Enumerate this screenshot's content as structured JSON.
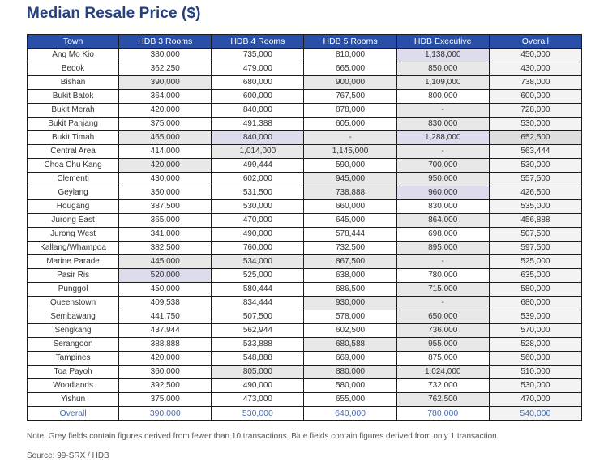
{
  "title": "Median Resale Price ($)",
  "table": {
    "headers": [
      "Town",
      "HDB 3 Rooms",
      "HDB 4 Rooms",
      "HDB 5 Rooms",
      "HDB Executive",
      "Overall"
    ],
    "rows": [
      {
        "town": "Ang Mo Kio",
        "values": [
          "380,000",
          "735,000",
          "810,000",
          "1,138,000",
          "450,000"
        ],
        "shade": [
          "",
          "",
          "",
          "b",
          ""
        ]
      },
      {
        "town": "Bedok",
        "values": [
          "362,250",
          "479,000",
          "665,000",
          "850,000",
          "430,000"
        ],
        "shade": [
          "",
          "",
          "",
          "g",
          ""
        ]
      },
      {
        "town": "Bishan",
        "values": [
          "390,000",
          "680,000",
          "900,000",
          "1,109,000",
          "738,000"
        ],
        "shade": [
          "g",
          "",
          "g",
          "g",
          ""
        ]
      },
      {
        "town": "Bukit Batok",
        "values": [
          "364,000",
          "600,000",
          "767,500",
          "800,000",
          "600,000"
        ],
        "shade": [
          "",
          "",
          "",
          "",
          ""
        ]
      },
      {
        "town": "Bukit Merah",
        "values": [
          "420,000",
          "840,000",
          "878,000",
          "-",
          "728,000"
        ],
        "shade": [
          "",
          "",
          "",
          "g",
          ""
        ]
      },
      {
        "town": "Bukit Panjang",
        "values": [
          "375,000",
          "491,388",
          "605,000",
          "830,000",
          "530,000"
        ],
        "shade": [
          "",
          "",
          "",
          "g",
          ""
        ]
      },
      {
        "town": "Bukit Timah",
        "values": [
          "465,000",
          "840,000",
          "-",
          "1,288,000",
          "652,500"
        ],
        "shade": [
          "g",
          "b",
          "g",
          "b",
          "g2"
        ]
      },
      {
        "town": "Central Area",
        "values": [
          "414,000",
          "1,014,000",
          "1,145,000",
          "-",
          "563,444"
        ],
        "shade": [
          "",
          "g",
          "g",
          "g",
          ""
        ]
      },
      {
        "town": "Choa Chu Kang",
        "values": [
          "420,000",
          "499,444",
          "590,000",
          "700,000",
          "530,000"
        ],
        "shade": [
          "g",
          "",
          "",
          "g",
          ""
        ]
      },
      {
        "town": "Clementi",
        "values": [
          "430,000",
          "602,000",
          "945,000",
          "950,000",
          "557,500"
        ],
        "shade": [
          "",
          "",
          "g",
          "g",
          ""
        ]
      },
      {
        "town": "Geylang",
        "values": [
          "350,000",
          "531,500",
          "738,888",
          "960,000",
          "426,500"
        ],
        "shade": [
          "",
          "",
          "g",
          "b",
          ""
        ]
      },
      {
        "town": "Hougang",
        "values": [
          "387,500",
          "530,000",
          "660,000",
          "830,000",
          "535,000"
        ],
        "shade": [
          "",
          "",
          "",
          "",
          ""
        ]
      },
      {
        "town": "Jurong East",
        "values": [
          "365,000",
          "470,000",
          "645,000",
          "864,000",
          "456,888"
        ],
        "shade": [
          "",
          "",
          "",
          "g",
          ""
        ]
      },
      {
        "town": "Jurong West",
        "values": [
          "341,000",
          "490,000",
          "578,444",
          "698,000",
          "507,500"
        ],
        "shade": [
          "",
          "",
          "",
          "",
          ""
        ]
      },
      {
        "town": "Kallang/Whampoa",
        "values": [
          "382,500",
          "760,000",
          "732,500",
          "895,000",
          "597,500"
        ],
        "shade": [
          "",
          "",
          "",
          "g",
          ""
        ]
      },
      {
        "town": "Marine Parade",
        "values": [
          "445,000",
          "534,000",
          "867,500",
          "-",
          "525,000"
        ],
        "shade": [
          "g",
          "g",
          "g",
          "g",
          ""
        ]
      },
      {
        "town": "Pasir Ris",
        "values": [
          "520,000",
          "525,000",
          "638,000",
          "780,000",
          "635,000"
        ],
        "shade": [
          "b",
          "",
          "",
          "",
          ""
        ]
      },
      {
        "town": "Punggol",
        "values": [
          "450,000",
          "580,444",
          "686,500",
          "715,000",
          "580,000"
        ],
        "shade": [
          "",
          "",
          "",
          "g",
          ""
        ]
      },
      {
        "town": "Queenstown",
        "values": [
          "409,538",
          "834,444",
          "930,000",
          "-",
          "680,000"
        ],
        "shade": [
          "",
          "",
          "g",
          "g",
          ""
        ]
      },
      {
        "town": "Sembawang",
        "values": [
          "441,750",
          "507,500",
          "578,000",
          "650,000",
          "539,000"
        ],
        "shade": [
          "",
          "",
          "",
          "g",
          ""
        ]
      },
      {
        "town": "Sengkang",
        "values": [
          "437,944",
          "562,944",
          "602,500",
          "736,000",
          "570,000"
        ],
        "shade": [
          "",
          "",
          "",
          "g",
          ""
        ]
      },
      {
        "town": "Serangoon",
        "values": [
          "388,888",
          "533,888",
          "680,588",
          "955,000",
          "528,000"
        ],
        "shade": [
          "",
          "",
          "g",
          "g",
          ""
        ]
      },
      {
        "town": "Tampines",
        "values": [
          "420,000",
          "548,888",
          "669,000",
          "875,000",
          "560,000"
        ],
        "shade": [
          "",
          "",
          "",
          "",
          ""
        ]
      },
      {
        "town": "Toa Payoh",
        "values": [
          "360,000",
          "805,000",
          "880,000",
          "1,024,000",
          "510,000"
        ],
        "shade": [
          "",
          "g",
          "g",
          "g",
          ""
        ]
      },
      {
        "town": "Woodlands",
        "values": [
          "392,500",
          "490,000",
          "580,000",
          "732,000",
          "530,000"
        ],
        "shade": [
          "",
          "",
          "",
          "",
          ""
        ]
      },
      {
        "town": "Yishun",
        "values": [
          "375,000",
          "473,000",
          "655,000",
          "762,500",
          "470,000"
        ],
        "shade": [
          "",
          "",
          "",
          "g",
          ""
        ]
      }
    ],
    "overall_row": {
      "town": "Overall",
      "values": [
        "390,000",
        "530,000",
        "640,000",
        "780,000",
        "540,000"
      ]
    }
  },
  "colors": {
    "title": "#24407f",
    "header_bg": "#2a4fa6",
    "grey_field": "#e8e8e8",
    "blue_field": "#dcdcec",
    "overall_text": "#4a6aa8"
  },
  "legend": {
    "grey": "fewer than 10 transactions",
    "blue": "only 1 transaction"
  },
  "note": "Note: Grey fields contain figures derived from fewer than 10 transactions. Blue fields contain figures derived from only 1 transaction.",
  "source": "Source: 99-SRX / HDB"
}
